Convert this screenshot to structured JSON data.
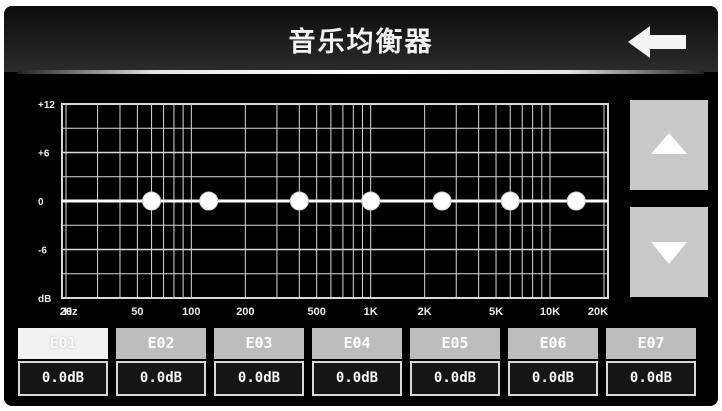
{
  "title": "音乐均衡器",
  "icons": {
    "back": "back-arrow-icon",
    "up": "triangle-up-icon",
    "down": "triangle-down-icon"
  },
  "graph": {
    "y_labels": [
      "+12",
      "+6",
      "0",
      "-6",
      "dB"
    ],
    "x_unit": "Hz",
    "x_labels": [
      "20",
      "50",
      "100",
      "200",
      "500",
      "1K",
      "2K",
      "5K",
      "10K",
      "20K"
    ]
  },
  "bands": [
    {
      "name": "E01",
      "value": "0.0dB",
      "gain": 0,
      "active": true
    },
    {
      "name": "E02",
      "value": "0.0dB",
      "gain": 0,
      "active": false
    },
    {
      "name": "E03",
      "value": "0.0dB",
      "gain": 0,
      "active": false
    },
    {
      "name": "E04",
      "value": "0.0dB",
      "gain": 0,
      "active": false
    },
    {
      "name": "E05",
      "value": "0.0dB",
      "gain": 0,
      "active": false
    },
    {
      "name": "E06",
      "value": "0.0dB",
      "gain": 0,
      "active": false
    },
    {
      "name": "E07",
      "value": "0.0dB",
      "gain": 0,
      "active": false
    }
  ],
  "colors": {
    "background": "#000000",
    "grid": "#d9d9d9",
    "button": "#c9c9c9",
    "tab": "#bdbdbd"
  }
}
